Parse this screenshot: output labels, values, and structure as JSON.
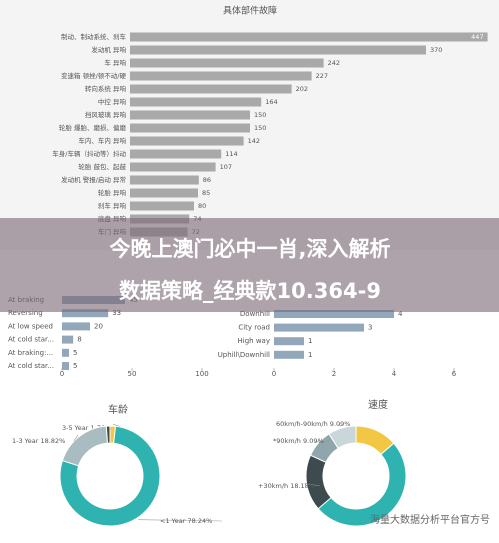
{
  "chart_data": [
    {
      "type": "hbar",
      "title": "具体部件故障",
      "categories": [
        "制动、制动系统、刹车",
        "发动机 异响",
        "车 异响",
        "变速箱 顿挫/顿不动/硬",
        "转向系统 异响",
        "中控 异响",
        "挡风玻璃 异响",
        "轮胎 爆胎、磨损、偏磨",
        "车内、车内 异响",
        "车身/车辆（抖动等）抖动",
        "轮胎 鼓包、起鼓",
        "发动机 警报/启动 异常",
        "轮胎 异响",
        "刹车 异响",
        "底盘 异响",
        "车门 异响"
      ],
      "values": [
        447,
        370,
        242,
        227,
        202,
        164,
        150,
        150,
        142,
        114,
        107,
        86,
        85,
        80,
        74,
        72
      ],
      "color": "#a9a9a9",
      "xlim": [
        0,
        450
      ]
    },
    {
      "type": "hbar",
      "categories": [
        "At braking",
        "Reversing",
        "At low speed",
        "At cold star...",
        "At braking:...",
        "At cold star..."
      ],
      "values": [
        45,
        33,
        20,
        8,
        5,
        5
      ],
      "color": "#93a7bb",
      "xlim": [
        0,
        100
      ],
      "xticks": [
        0,
        50,
        100
      ]
    },
    {
      "type": "hbar",
      "categories": [
        "Downhill",
        "City road",
        "High way",
        "Uphill\\Downhill"
      ],
      "values": [
        4,
        3,
        1,
        1
      ],
      "color": "#93a7bb",
      "xlim": [
        0,
        6
      ],
      "xticks": [
        0,
        2,
        4,
        6
      ]
    },
    {
      "type": "donut",
      "title": "车龄",
      "categories": [
        "3-5 Year",
        "<1 Year",
        "1-3 Year",
        null
      ],
      "values": [
        1.76,
        78.24,
        18.82,
        1.18
      ],
      "value_labels": [
        "1.76%",
        "78.24%",
        "18.82%",
        null
      ],
      "colors": [
        "#f2c744",
        "#2fb3b0",
        "#a9bcc2",
        "#3d4a4e"
      ]
    },
    {
      "type": "donut",
      "title": "速度",
      "categories": [
        null,
        null,
        "+30km/h",
        "*90km/h",
        "60km/h-90km/h"
      ],
      "values": [
        13.64,
        50,
        18.18,
        9.09,
        9.09
      ],
      "value_labels": [
        null,
        null,
        "18.18%",
        "9.09%",
        "9.09%"
      ],
      "colors": [
        "#f2c744",
        "#2fb3b0",
        "#3d4a4e",
        "#8fa6ad",
        "#c9d6da"
      ]
    }
  ],
  "overlay": {
    "lines": [
      "今晚上澳门必中一肖,深入解析",
      "数据策略_经典款10.364-9"
    ]
  },
  "watermark": "海量大数据分析平台官方号"
}
